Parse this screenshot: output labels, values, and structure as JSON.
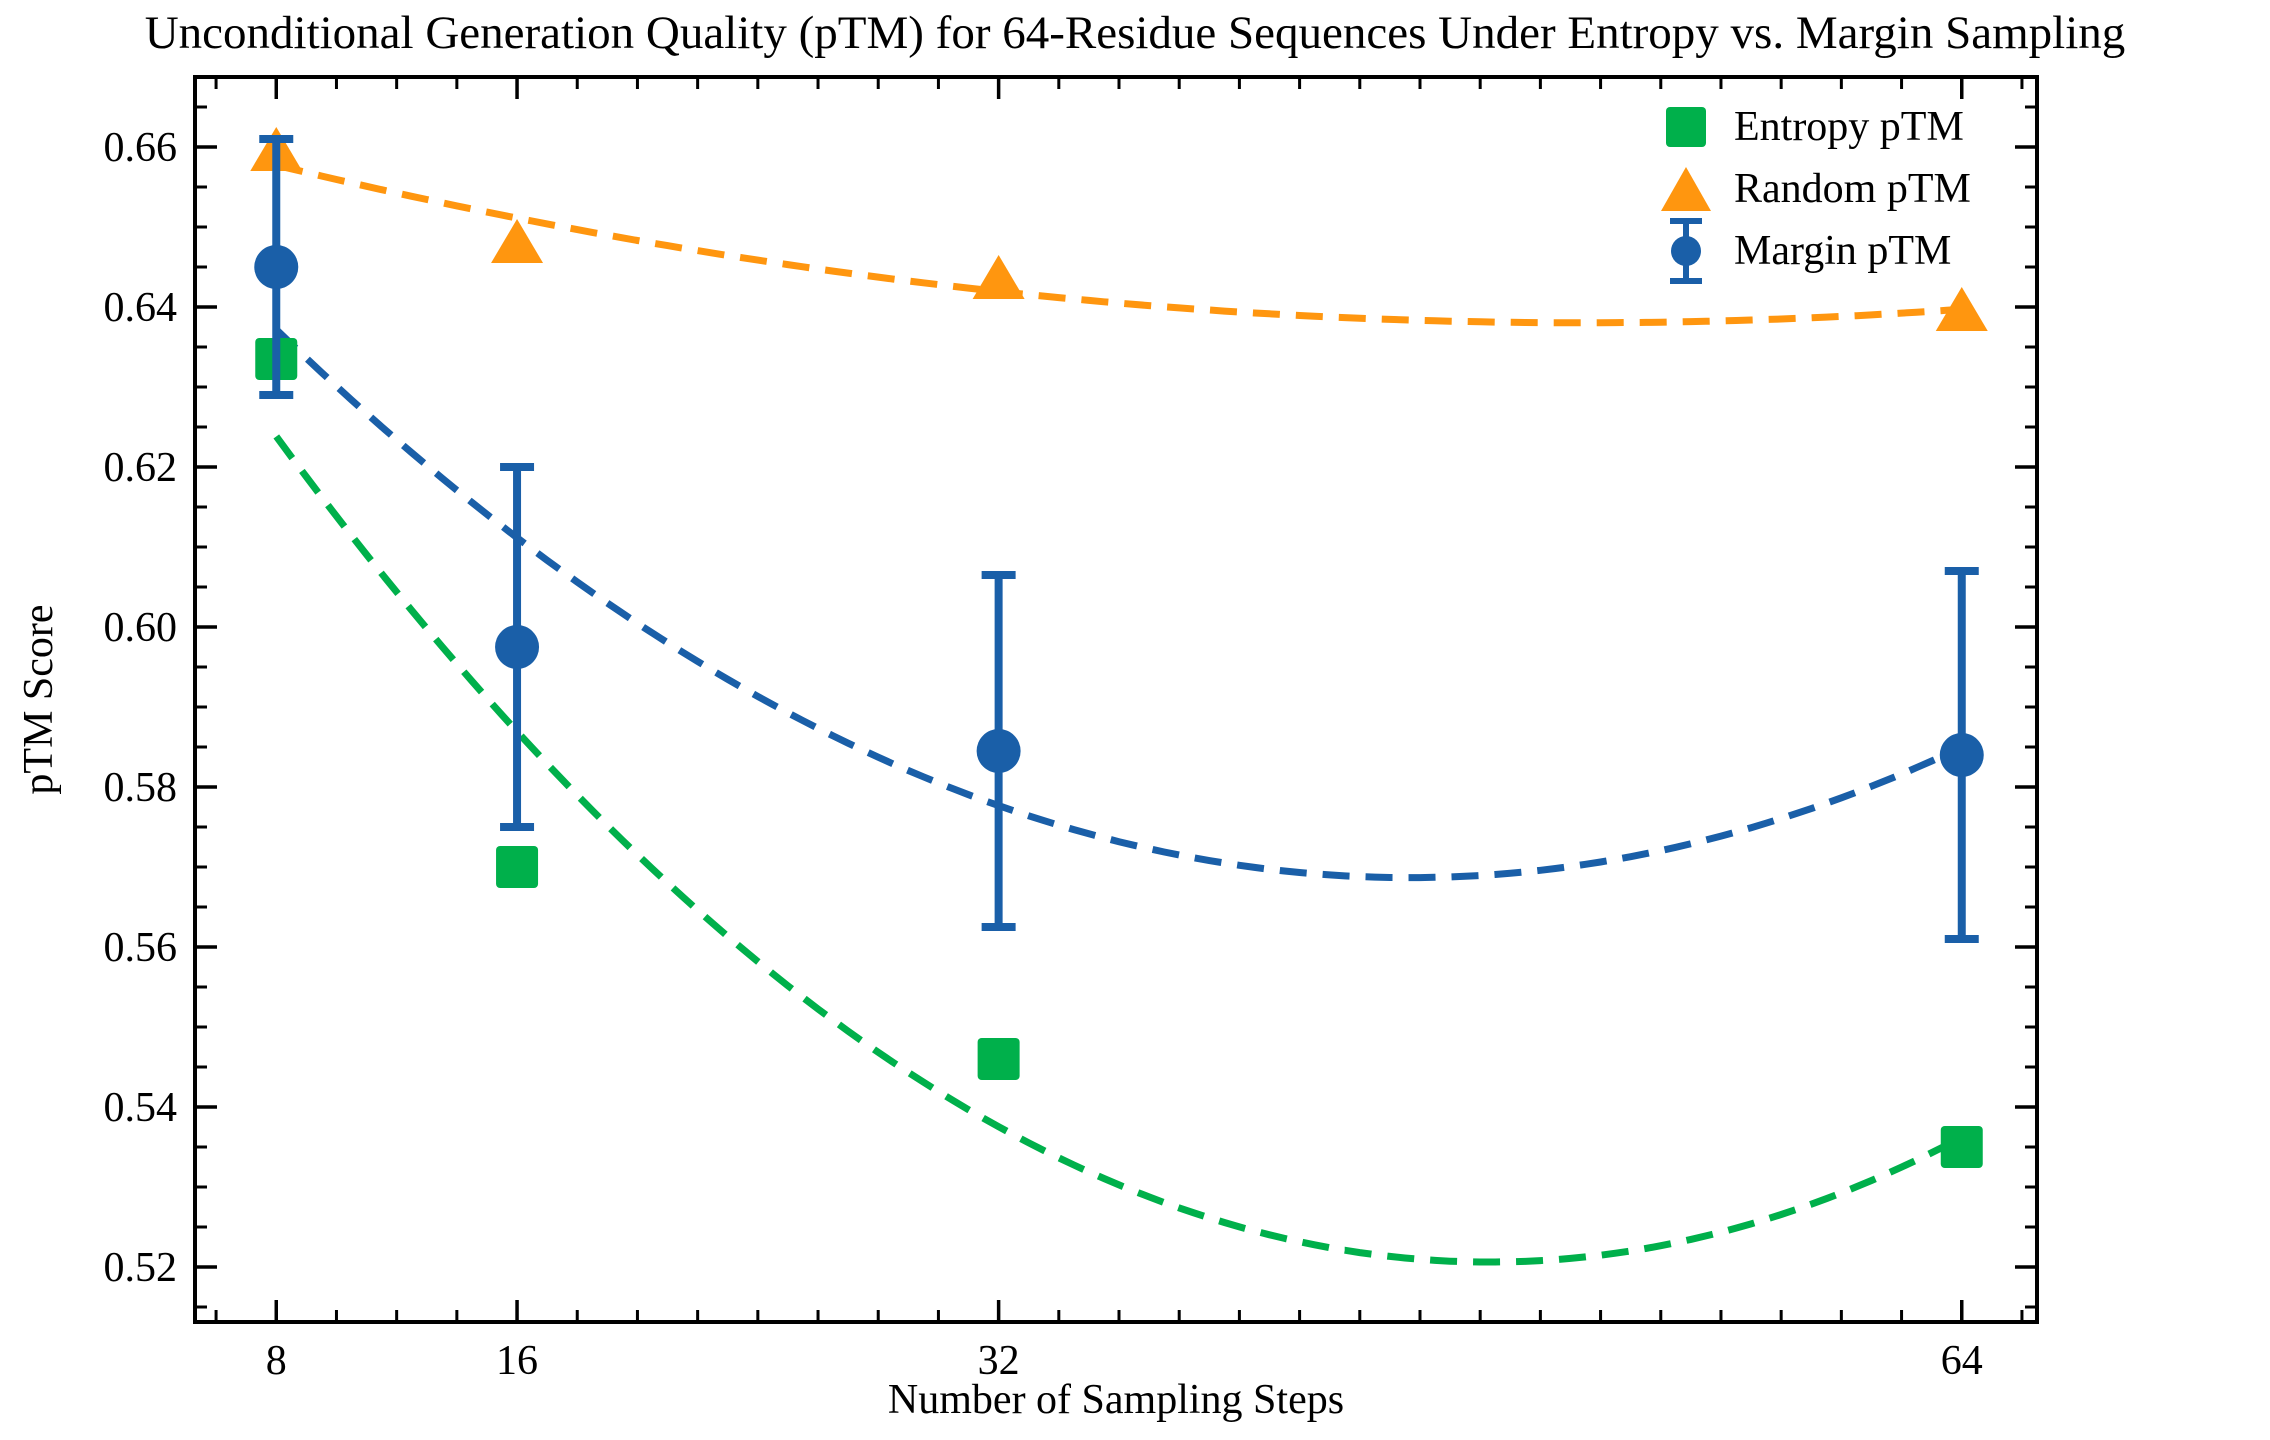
{
  "chart_data": {
    "type": "scatter",
    "title": "Unconditional Generation Quality (pTM) for 64-Residue Sequences Under Entropy vs. Margin Sampling",
    "xlabel": "Number of Sampling Steps",
    "ylabel": "pTM Score",
    "x": [
      8,
      16,
      32,
      64
    ],
    "xlim": [
      5.3,
      66.5
    ],
    "ylim": [
      0.513125,
      0.66875
    ],
    "x_major_ticks": [
      8,
      16,
      32,
      64
    ],
    "x_minor_step": 2,
    "y_major_ticks": [
      0.52,
      0.54,
      0.56,
      0.58,
      0.6,
      0.62,
      0.64,
      0.66
    ],
    "y_minor_step": 0.005,
    "grid": false,
    "legend_position": "upper right",
    "axis_color": "#000000",
    "background": "#ffffff",
    "trend_fit": "quadratic least-squares in x, dashed, per series",
    "series": [
      {
        "name": "Entropy pTM",
        "marker": "square",
        "color": "#00B04B",
        "values": [
          0.6335,
          0.57,
          0.546,
          0.535
        ]
      },
      {
        "name": "Random pTM",
        "marker": "triangle",
        "color": "#FF960F",
        "values": [
          0.6595,
          0.648,
          0.6435,
          0.6395
        ]
      },
      {
        "name": "Margin pTM",
        "marker": "circle",
        "color": "#1A5FA8",
        "values": [
          0.645,
          0.5975,
          0.5845,
          0.584
        ],
        "error": [
          0.016,
          0.0225,
          0.022,
          0.023
        ]
      }
    ]
  }
}
